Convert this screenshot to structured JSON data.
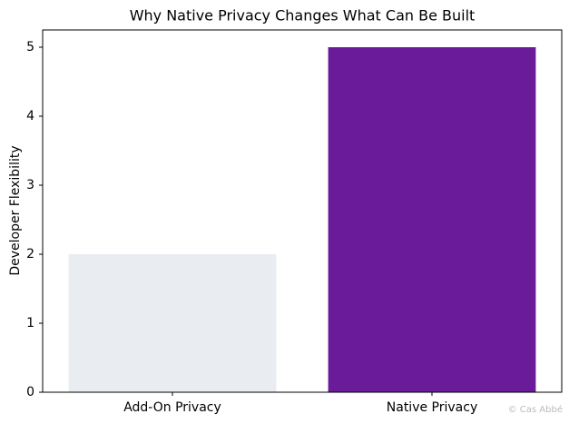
{
  "chart_data": {
    "type": "bar",
    "title": "Why Native Privacy Changes What Can Be Built",
    "ylabel": "Developer Flexibility",
    "categories": [
      "Add-On Privacy",
      "Native Privacy"
    ],
    "values": [
      2,
      5
    ],
    "colors": [
      "#e9edf2",
      "#6a1b9a"
    ],
    "ylim": [
      0,
      5.25
    ],
    "yticks": [
      0,
      1,
      2,
      3,
      4,
      5
    ],
    "grid": false,
    "watermark": "© Cas Abbé"
  }
}
